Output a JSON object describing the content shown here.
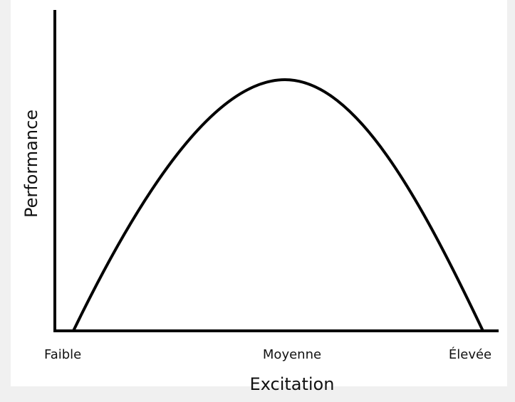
{
  "axes": {
    "y_label": "Performance",
    "x_label": "Excitation"
  },
  "x_levels": [
    "Faible",
    "Moyenne",
    "Élevée"
  ]
}
